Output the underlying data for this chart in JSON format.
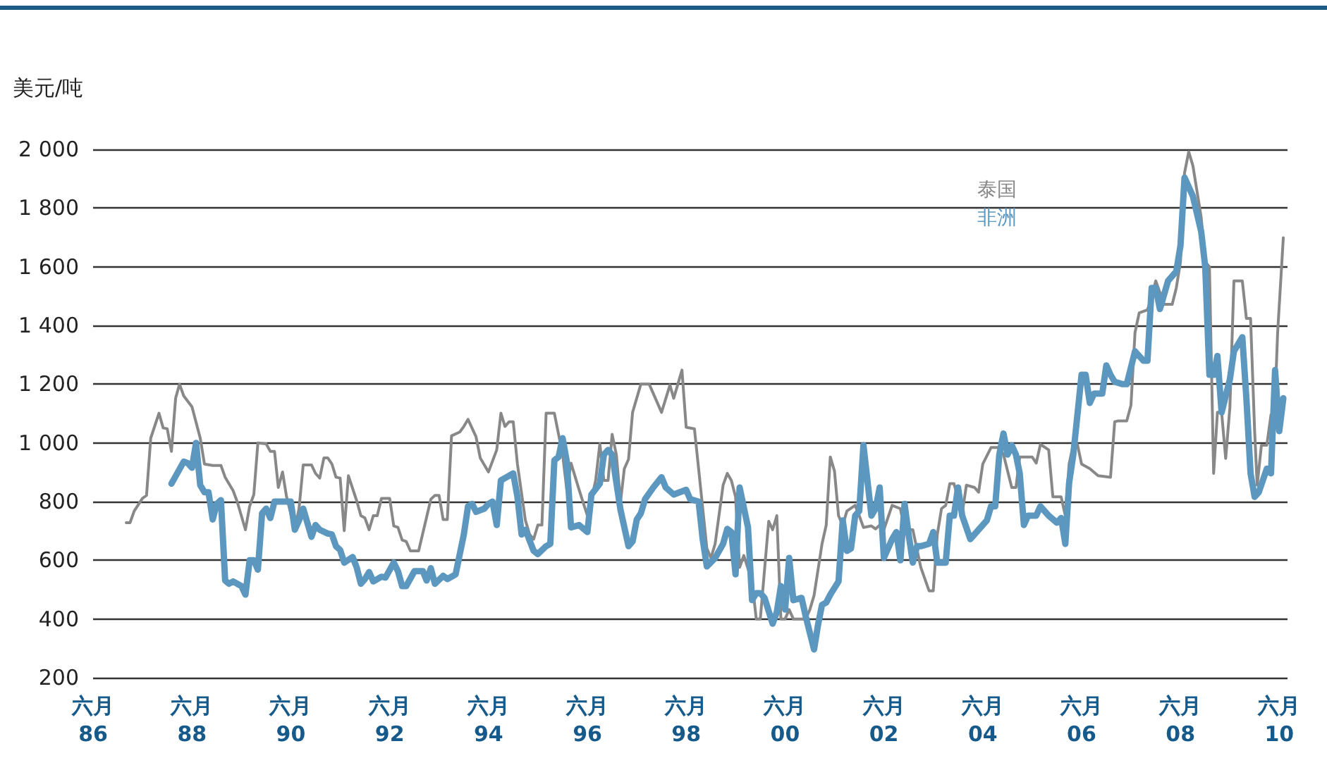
{
  "chart_data": {
    "type": "line",
    "ylabel": "美元/吨",
    "xlim": [
      "1986-06",
      "2010-08"
    ],
    "xticks": [
      {
        "value": "1986-06",
        "label": "六月\n86"
      },
      {
        "value": "1988-06",
        "label": "六月\n88"
      },
      {
        "value": "1990-06",
        "label": "六月\n90"
      },
      {
        "value": "1992-06",
        "label": "六月\n92"
      },
      {
        "value": "1994-06",
        "label": "六月\n94"
      },
      {
        "value": "1996-06",
        "label": "六月\n96"
      },
      {
        "value": "1998-06",
        "label": "六月\n98"
      },
      {
        "value": "2000-06",
        "label": "六月\n00"
      },
      {
        "value": "2002-06",
        "label": "六月\n02"
      },
      {
        "value": "2004-06",
        "label": "六月\n04"
      },
      {
        "value": "2006-06",
        "label": "六月\n06"
      },
      {
        "value": "2008-06",
        "label": "六月\n08"
      },
      {
        "value": "2010-06",
        "label": "六月\n10"
      }
    ],
    "ylim": [
      200,
      2000
    ],
    "yticks": [
      200,
      400,
      600,
      800,
      {
        "value": 1000,
        "label": "1 000"
      },
      {
        "value": 1200,
        "label": "1 200"
      },
      {
        "value": 1400,
        "label": "1 400"
      },
      {
        "value": 1600,
        "label": "1 600"
      },
      {
        "value": 1800,
        "label": "1 800"
      },
      {
        "value": 2000,
        "label": "2 000"
      }
    ],
    "grid": "y",
    "legend": "top right",
    "marker": "none",
    "line_style": "solid",
    "series": [
      {
        "name": "泰国",
        "color": "#888888",
        "x": [
          "1987-02",
          "1987-03",
          "1987-04",
          "1987-06",
          "1987-07",
          "1987-08",
          "1987-10",
          "1987-11",
          "1987-12",
          "1988-01",
          "1988-02",
          "1988-03",
          "1988-04",
          "1988-06",
          "1988-08",
          "1988-09",
          "1988-11",
          "1989-01",
          "1989-02",
          "1989-04",
          "1989-05",
          "1989-07",
          "1989-08",
          "1989-09",
          "1989-10",
          "1989-12",
          "1990-01",
          "1990-02",
          "1990-03",
          "1990-04",
          "1990-05",
          "1990-07",
          "1990-08",
          "1990-09",
          "1990-11",
          "1990-12",
          "1991-01",
          "1991-02",
          "1991-03",
          "1991-04",
          "1991-05",
          "1991-06",
          "1991-07",
          "1991-08",
          "1991-10",
          "1991-11",
          "1991-12",
          "1992-01",
          "1992-02",
          "1992-03",
          "1992-04",
          "1992-06",
          "1992-07",
          "1992-08",
          "1992-09",
          "1992-10",
          "1992-11",
          "1993-01",
          "1993-04",
          "1993-05",
          "1993-06",
          "1993-07",
          "1993-08",
          "1993-09",
          "1993-11",
          "1993-12",
          "1994-01",
          "1994-03",
          "1994-04",
          "1994-06",
          "1994-08",
          "1994-09",
          "1994-10",
          "1994-11",
          "1994-12",
          "1995-01",
          "1995-03",
          "1995-04",
          "1995-05",
          "1995-06",
          "1995-07",
          "1995-08",
          "1995-10",
          "1995-12",
          "1996-01",
          "1996-02",
          "1996-04",
          "1996-06",
          "1996-07",
          "1996-08",
          "1996-09",
          "1996-10",
          "1996-11",
          "1996-12",
          "1997-01",
          "1997-02",
          "1997-03",
          "1997-04",
          "1997-05",
          "1997-07",
          "1997-09",
          "1997-12",
          "1998-02",
          "1998-03",
          "1998-05",
          "1998-06",
          "1998-08",
          "1998-09",
          "1998-11",
          "1998-12",
          "1999-01",
          "1999-03",
          "1999-04",
          "1999-05",
          "1999-06",
          "1999-07",
          "1999-08",
          "1999-10",
          "1999-11",
          "1999-12",
          "2000-02",
          "2000-03",
          "2000-04",
          "2000-05",
          "2000-06",
          "2000-07",
          "2000-08",
          "2000-11",
          "2000-12",
          "2001-01",
          "2001-03",
          "2001-04",
          "2001-05",
          "2001-06",
          "2001-07",
          "2001-08",
          "2001-09",
          "2001-11",
          "2001-12",
          "2002-01",
          "2002-03",
          "2002-04",
          "2002-05",
          "2002-06",
          "2002-08",
          "2002-10",
          "2002-11",
          "2003-01",
          "2003-03",
          "2003-05",
          "2003-06",
          "2003-07",
          "2003-08",
          "2003-09",
          "2003-10",
          "2003-11",
          "2004-01",
          "2004-02",
          "2004-04",
          "2004-05",
          "2004-06",
          "2004-08",
          "2004-10",
          "2004-11",
          "2005-01",
          "2005-02",
          "2005-03",
          "2005-06",
          "2005-07",
          "2005-08",
          "2005-10",
          "2005-11",
          "2006-01",
          "2006-02",
          "2006-03",
          "2006-04",
          "2006-05",
          "2006-06",
          "2006-08",
          "2006-10",
          "2007-01",
          "2007-02",
          "2007-03",
          "2007-05",
          "2007-06",
          "2007-07",
          "2007-08",
          "2007-10",
          "2007-11",
          "2007-12",
          "2008-02",
          "2008-04",
          "2008-05",
          "2008-06",
          "2008-07",
          "2008-08",
          "2008-09",
          "2008-11",
          "2008-12",
          "2009-01",
          "2009-02",
          "2009-03",
          "2009-04",
          "2009-05",
          "2009-06",
          "2009-07",
          "2009-09",
          "2009-10",
          "2009-11",
          "2009-12",
          "2009-12-20",
          "2010-01-20",
          "2010-03",
          "2010-04",
          "2010-04-25",
          "2010-05-20",
          "2010-07"
        ],
        "values": [
          728,
          728,
          768,
          811,
          821,
          1016,
          1101,
          1051,
          1048,
          971,
          1152,
          1200,
          1160,
          1123,
          1016,
          928,
          923,
          923,
          883,
          837,
          800,
          704,
          784,
          824,
          1000,
          997,
          971,
          971,
          848,
          901,
          816,
          704,
          776,
          925,
          925,
          896,
          880,
          949,
          949,
          928,
          883,
          880,
          701,
          888,
          803,
          752,
          744,
          704,
          752,
          752,
          811,
          811,
          717,
          712,
          669,
          664,
          632,
          632,
          808,
          821,
          821,
          739,
          739,
          1024,
          1037,
          1056,
          1080,
          1021,
          949,
          901,
          976,
          1101,
          1056,
          1072,
          1072,
          928,
          736,
          688,
          672,
          720,
          720,
          1101,
          1101,
          960,
          840,
          931,
          840,
          752,
          808,
          872,
          997,
          872,
          872,
          1029,
          960,
          800,
          912,
          944,
          1104,
          1200,
          1200,
          1104,
          1197,
          1152,
          1248,
          1053,
          1048,
          912,
          640,
          608,
          656,
          856,
          896,
          872,
          816,
          576,
          616,
          528,
          400,
          400,
          733,
          704,
          752,
          400,
          400,
          432,
          400,
          400,
          432,
          480,
          656,
          720,
          952,
          904,
          752,
          720,
          768,
          787,
          752,
          712,
          717,
          707,
          720,
          704,
          787,
          776,
          704,
          704,
          576,
          496,
          496,
          688,
          776,
          787,
          861,
          861,
          760,
          856,
          848,
          832,
          928,
          984,
          984,
          960,
          848,
          848,
          952,
          952,
          931,
          995,
          976,
          816,
          816,
          752,
          928,
          995,
          995,
          928,
          912,
          888,
          883,
          1072,
          1075,
          1075,
          1128,
          1376,
          1443,
          1453,
          1496,
          1552,
          1472,
          1472,
          1528,
          1616,
          1920,
          1992,
          1944,
          1768,
          1616,
          1600,
          896,
          1104,
          1104,
          947,
          1120,
          1552,
          1552,
          1424,
          1424,
          1040,
          856,
          992,
          992,
          1096,
          1072,
          1376,
          1699
        ]
      },
      {
        "name": "非洲",
        "color": "#5b97bf",
        "x": [
          "1988-01",
          "1988-04",
          "1988-05",
          "1988-06",
          "1988-07",
          "1988-08",
          "1988-09",
          "1988-10",
          "1988-11",
          "1988-12",
          "1989-01",
          "1989-02",
          "1989-03",
          "1989-04",
          "1989-06",
          "1989-07",
          "1989-08",
          "1989-09",
          "1989-10",
          "1989-11",
          "1989-12",
          "1990-01",
          "1990-02",
          "1990-05",
          "1990-06",
          "1990-07",
          "1990-08",
          "1990-09",
          "1990-11",
          "1990-12",
          "1991-01",
          "1991-03",
          "1991-04",
          "1991-05",
          "1991-06",
          "1991-07",
          "1991-09",
          "1991-10",
          "1991-11",
          "1991-12",
          "1992-01",
          "1992-02",
          "1992-04",
          "1992-05",
          "1992-07",
          "1992-08",
          "1992-09",
          "1992-10",
          "1992-12",
          "1993-02",
          "1993-03",
          "1993-04",
          "1993-05",
          "1993-07",
          "1993-08",
          "1993-10",
          "1993-12",
          "1994-01",
          "1994-02",
          "1994-03",
          "1994-05",
          "1994-06",
          "1994-07",
          "1994-08",
          "1994-09",
          "1994-10",
          "1994-12",
          "1995-01",
          "1995-02",
          "1995-03",
          "1995-05",
          "1995-06",
          "1995-08",
          "1995-09",
          "1995-10",
          "1995-11",
          "1995-12",
          "1996-01",
          "1996-02",
          "1996-04",
          "1996-06",
          "1996-07",
          "1996-09",
          "1996-10",
          "1996-11",
          "1996-12",
          "1997-02",
          "1997-04",
          "1997-05",
          "1997-06",
          "1997-07",
          "1997-08",
          "1997-10",
          "1997-12",
          "1998-01",
          "1998-03",
          "1998-06",
          "1998-07",
          "1998-09",
          "1998-10",
          "1998-11",
          "1999-01",
          "1999-03",
          "1999-04",
          "1999-05",
          "1999-06",
          "1999-07",
          "1999-09",
          "1999-10",
          "1999-11",
          "1999-12",
          "2000-01",
          "2000-03",
          "2000-04",
          "2000-05",
          "2000-06",
          "2000-07",
          "2000-08",
          "2000-10",
          "2000-11",
          "2001-01",
          "2001-02",
          "2001-03",
          "2001-04",
          "2001-05",
          "2001-07",
          "2001-08",
          "2001-09",
          "2001-10",
          "2001-11",
          "2001-12",
          "2002-01",
          "2002-03",
          "2002-04",
          "2002-05",
          "2002-06",
          "2002-08",
          "2002-09",
          "2002-10",
          "2002-11",
          "2002-12",
          "2003-01",
          "2003-02",
          "2003-03",
          "2003-05",
          "2003-06",
          "2003-07",
          "2003-09",
          "2003-10",
          "2003-11",
          "2003-12",
          "2004-01",
          "2004-03",
          "2004-05",
          "2004-07",
          "2004-08",
          "2004-09",
          "2004-10",
          "2004-11",
          "2004-12",
          "2005-01",
          "2005-02",
          "2005-03",
          "2005-04",
          "2005-05",
          "2005-07",
          "2005-08",
          "2005-10",
          "2005-12",
          "2006-01",
          "2006-02",
          "2006-03",
          "2006-04",
          "2006-06",
          "2006-07",
          "2006-08",
          "2006-09",
          "2006-11",
          "2006-12",
          "2007-01",
          "2007-02",
          "2007-04",
          "2007-05",
          "2007-07",
          "2007-09",
          "2007-10",
          "2007-11",
          "2007-12",
          "2008-01",
          "2008-03",
          "2008-05",
          "2008-06",
          "2008-07",
          "2008-09",
          "2008-11",
          "2008-12",
          "2009-01",
          "2009-02",
          "2009-03",
          "2009-04",
          "2009-06",
          "2009-07",
          "2009-09",
          "2009-10",
          "2009-11",
          "2009-12",
          "2010-01",
          "2010-03",
          "2010-04",
          "2010-05",
          "2010-06",
          "2010-07"
        ],
        "values": [
          861,
          936,
          931,
          915,
          1000,
          856,
          832,
          832,
          739,
          792,
          805,
          531,
          520,
          528,
          512,
          483,
          600,
          600,
          568,
          760,
          776,
          744,
          800,
          800,
          800,
          704,
          736,
          776,
          680,
          720,
          704,
          691,
          688,
          648,
          635,
          592,
          611,
          576,
          520,
          536,
          560,
          528,
          544,
          541,
          592,
          563,
          512,
          512,
          563,
          563,
          531,
          573,
          520,
          547,
          536,
          552,
          688,
          784,
          792,
          765,
          776,
          792,
          800,
          720,
          872,
          880,
          896,
          816,
          688,
          704,
          632,
          621,
          648,
          656,
          941,
          952,
          1016,
          936,
          712,
          720,
          696,
          824,
          861,
          960,
          976,
          960,
          771,
          648,
          664,
          739,
          760,
          808,
          848,
          883,
          848,
          824,
          840,
          808,
          800,
          672,
          579,
          608,
          656,
          707,
          696,
          552,
          848,
          712,
          464,
          488,
          488,
          472,
          384,
          424,
          512,
          432,
          608,
          464,
          472,
          408,
          296,
          384,
          448,
          456,
          483,
          528,
          736,
          632,
          640,
          752,
          768,
          992,
          752,
          776,
          848,
          608,
          672,
          696,
          600,
          792,
          688,
          592,
          648,
          648,
          656,
          696,
          592,
          592,
          752,
          752,
          848,
          752,
          672,
          704,
          736,
          784,
          784,
          960,
          1032,
          960,
          992,
          960,
          896,
          720,
          752,
          752,
          784,
          752,
          728,
          744,
          656,
          864,
          960,
          1232,
          1232,
          1136,
          1168,
          1168,
          1264,
          1232,
          1208,
          1200,
          1200,
          1312,
          1280,
          1280,
          1528,
          1528,
          1456,
          1552,
          1584,
          1672,
          1904,
          1840,
          1720,
          1600,
          1232,
          1232,
          1296,
          1104,
          1216,
          1312,
          1360,
          1152,
          896,
          816,
          832,
          912,
          896,
          1248,
          1040,
          1152
        ]
      }
    ]
  }
}
